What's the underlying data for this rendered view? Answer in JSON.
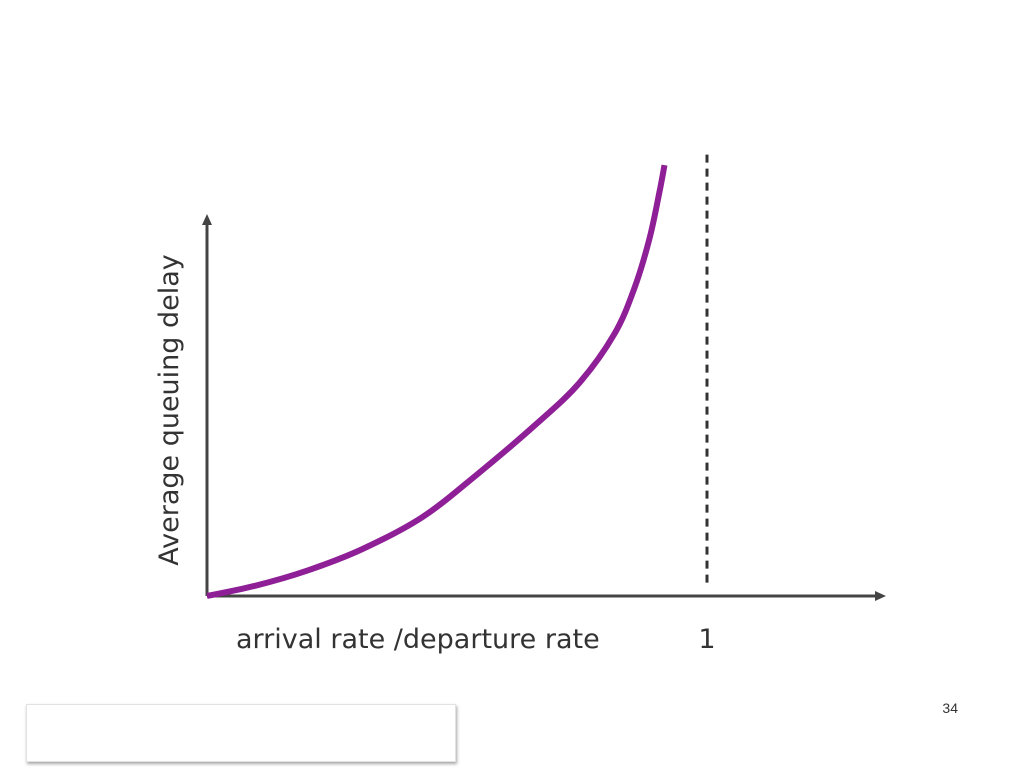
{
  "chart_data": {
    "type": "line",
    "title": "",
    "xlabel": "arrival rate /departure rate",
    "ylabel": "Average queuing delay",
    "x_ticks": [
      {
        "value": 1,
        "label": "1"
      }
    ],
    "xlim": [
      0,
      1.36
    ],
    "ylim": [
      0,
      1
    ],
    "grid": false,
    "legend": "none",
    "series": [
      {
        "values": [
          {
            "x": 0.0,
            "y": 0.0
          },
          {
            "x": 0.095,
            "y": 0.023
          },
          {
            "x": 0.2,
            "y": 0.058
          },
          {
            "x": 0.31,
            "y": 0.107
          },
          {
            "x": 0.43,
            "y": 0.18
          },
          {
            "x": 0.54,
            "y": 0.278
          },
          {
            "x": 0.66,
            "y": 0.395
          },
          {
            "x": 0.745,
            "y": 0.488
          },
          {
            "x": 0.815,
            "y": 0.6
          },
          {
            "x": 0.855,
            "y": 0.705
          },
          {
            "x": 0.885,
            "y": 0.818
          },
          {
            "x": 0.905,
            "y": 0.925
          },
          {
            "x": 0.915,
            "y": 0.986
          }
        ]
      }
    ],
    "annotations": [
      {
        "type": "vertical-dashed-line",
        "x": 1
      }
    ],
    "colors": {
      "curve": "#8e1f96",
      "axes": "#444444",
      "asymptote": "#333333",
      "text": "#333333"
    }
  },
  "slide": {
    "page_number": "34"
  }
}
